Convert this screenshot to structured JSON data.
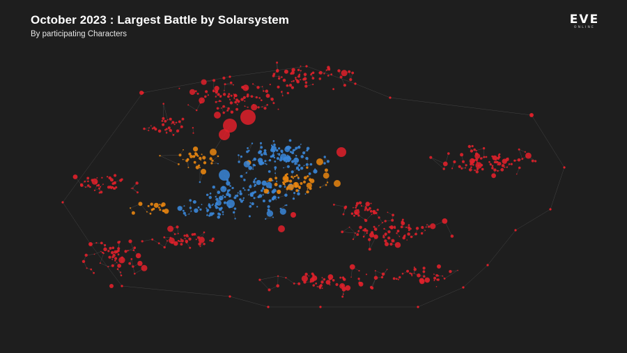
{
  "header": {
    "title": "October 2023 : Largest Battle by Solarsystem",
    "subtitle": "By participating Characters"
  },
  "logo": {
    "main": "EVE",
    "sub": "ONLINE",
    "name": "eve-online-logo"
  },
  "colors": {
    "background": "#1e1e1e",
    "edge": "#6a6a6a",
    "red": "#e0202a",
    "orange": "#e8850f",
    "blue": "#3a86d8"
  },
  "map": {
    "type": "network-scatter",
    "description_mode": "solar systems sized by participating characters",
    "series": [
      {
        "key": "red",
        "color": "#e0202a"
      },
      {
        "key": "orange",
        "color": "#e8850f"
      },
      {
        "key": "blue",
        "color": "#3a86d8"
      }
    ]
  }
}
